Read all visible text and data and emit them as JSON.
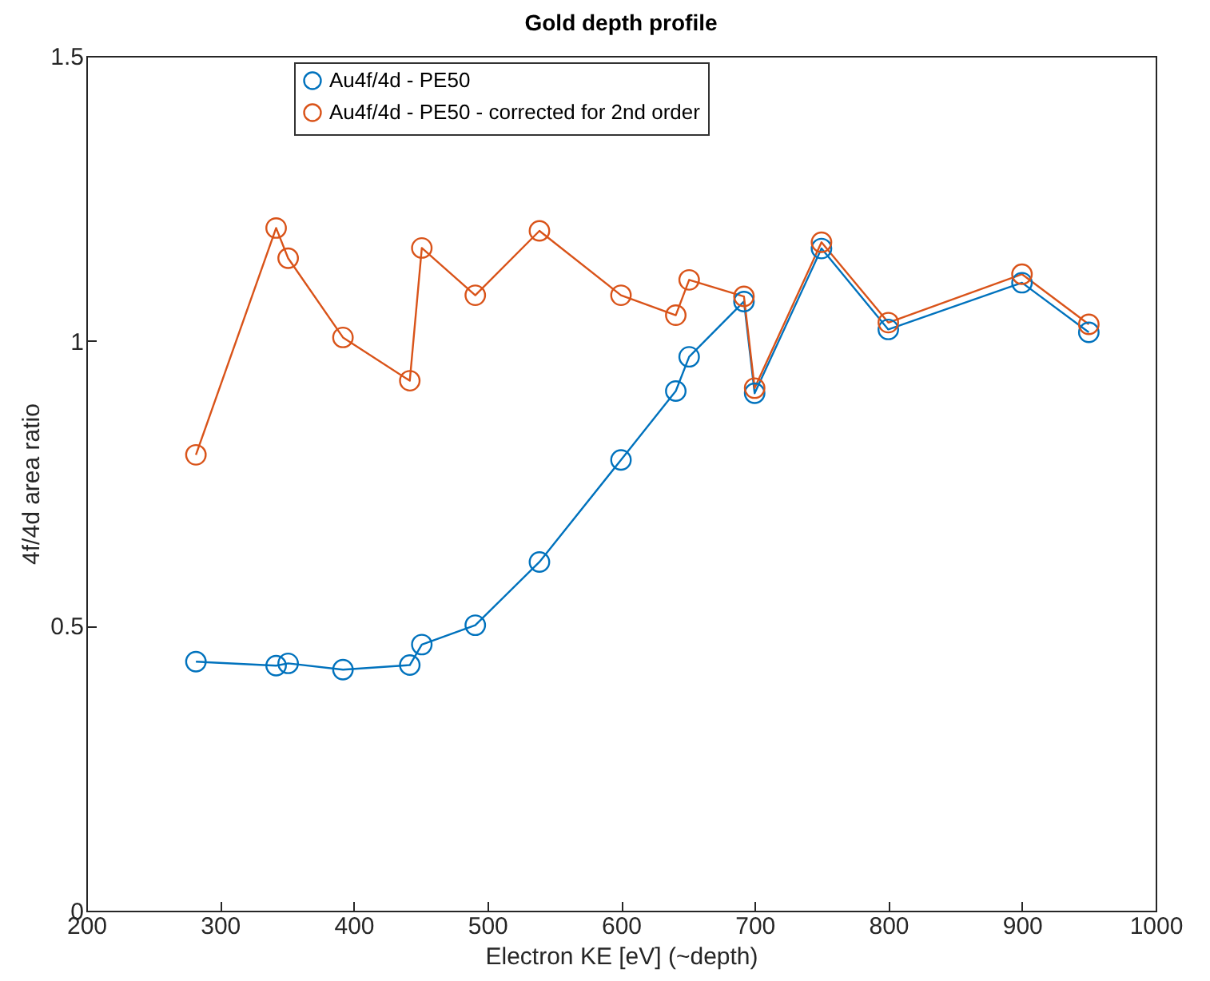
{
  "chart_data": {
    "type": "line",
    "title": "Gold depth profile",
    "xlabel": "Electron KE [eV] (~depth)",
    "ylabel": "4f/4d area ratio",
    "x": [
      282,
      342,
      351,
      392,
      442,
      451,
      491,
      539,
      600,
      641,
      651,
      692,
      700,
      750,
      800,
      900,
      950
    ],
    "series": [
      {
        "name": "Au4f/4d - PE50",
        "color": "#0072bd",
        "values": [
          0.437,
          0.43,
          0.434,
          0.423,
          0.431,
          0.467,
          0.501,
          0.612,
          0.791,
          0.912,
          0.972,
          1.069,
          0.908,
          1.162,
          1.02,
          1.102,
          1.015
        ]
      },
      {
        "name": "Au4f/4d - PE50 - corrected for 2nd order",
        "color": "#d95319",
        "values": [
          0.8,
          1.198,
          1.145,
          1.006,
          0.93,
          1.163,
          1.08,
          1.193,
          1.08,
          1.045,
          1.107,
          1.078,
          0.917,
          1.173,
          1.032,
          1.117,
          1.029
        ]
      }
    ],
    "xlim": [
      200,
      1000
    ],
    "xticks": [
      200,
      300,
      400,
      500,
      600,
      700,
      800,
      900,
      1000
    ],
    "ylim": [
      0,
      1.5
    ],
    "yticks": [
      0,
      0.5,
      1,
      1.5
    ],
    "grid": false,
    "legend": "top",
    "marker": "circle",
    "line_style": "solid"
  }
}
